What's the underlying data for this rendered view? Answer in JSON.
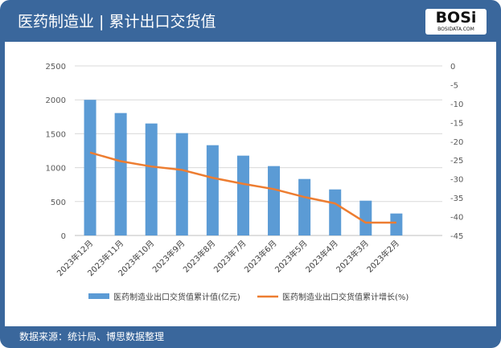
{
  "header": {
    "title": "医药制造业 | 累计出口交货值",
    "logo_text": "BOSi",
    "logo_sub": "BOSIDATA.COM"
  },
  "footer": {
    "source": "数据来源：统计局、博思数据整理"
  },
  "colors": {
    "bar": "#5b9bd5",
    "line": "#ed7d31",
    "frame": "#3a679c"
  },
  "chart_data": {
    "type": "bar+line",
    "categories": [
      "2023年12月",
      "2023年11月",
      "2023年10月",
      "2023年9月",
      "2023年8月",
      "2023年7月",
      "2023年6月",
      "2023年5月",
      "2023年4月",
      "2023年3月",
      "2023年2月"
    ],
    "series": [
      {
        "name": "医药制造业出口交货值累计值(亿元)",
        "type": "bar",
        "axis": "left",
        "values": [
          2000,
          1805,
          1651,
          1509,
          1331,
          1177,
          1023,
          833,
          679,
          513,
          324
        ]
      },
      {
        "name": "医药制造业出口交货值累计增长(%)",
        "type": "line",
        "axis": "right",
        "values": [
          -23.0,
          -25.3,
          -26.7,
          -27.6,
          -29.7,
          -31.3,
          -32.7,
          -34.8,
          -36.5,
          -41.6,
          -41.6
        ]
      }
    ],
    "yleft": {
      "range": [
        0,
        2500
      ],
      "ticks": [
        0,
        500,
        1000,
        1500,
        2000,
        2500
      ]
    },
    "yright": {
      "range": [
        -45,
        0
      ],
      "ticks": [
        0,
        -5,
        -10,
        -15,
        -20,
        -25,
        -30,
        -35,
        -40,
        -45
      ]
    },
    "grid": true,
    "legend": "bottom"
  }
}
